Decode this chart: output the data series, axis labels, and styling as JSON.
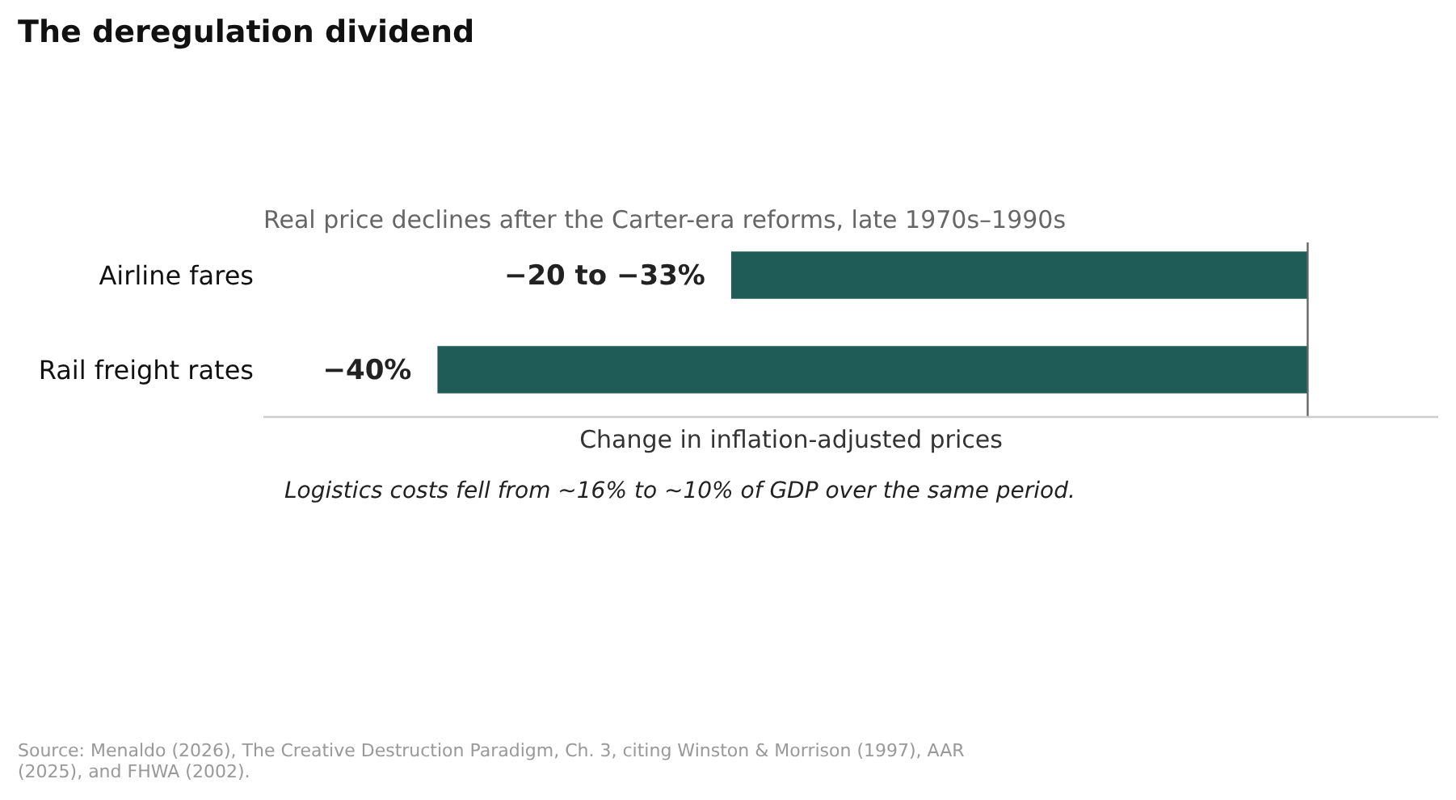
{
  "chart_data": {
    "type": "bar",
    "orientation": "horizontal",
    "title": "The deregulation dividend",
    "subtitle": "Real price declines after the Carter-era reforms, late 1970s–1990s",
    "xlabel": "Change in inflation-adjusted prices",
    "categories": [
      "Airline fares",
      "Rail freight rates"
    ],
    "values": [
      -26.5,
      -40
    ],
    "color": "#1f5c57",
    "value_labels": [
      null,
      "−40%"
    ],
    "xlim": [
      -48,
      6
    ],
    "ref_lines": [
      {
        "axis": "x",
        "value": 0,
        "color": "#666666"
      }
    ],
    "annotations": [
      {
        "text": "−20 to −33%",
        "x": -26.5,
        "y": "Airline fares"
      },
      "Logistics costs fell from ~16% to ~10% of GDP over the same period.",
      "Source: Menaldo (2026), The Creative Destruction Paradigm, Ch. 3, citing Winston & Morrison (1997), AAR (2025), and FHWA (2002)."
    ]
  }
}
